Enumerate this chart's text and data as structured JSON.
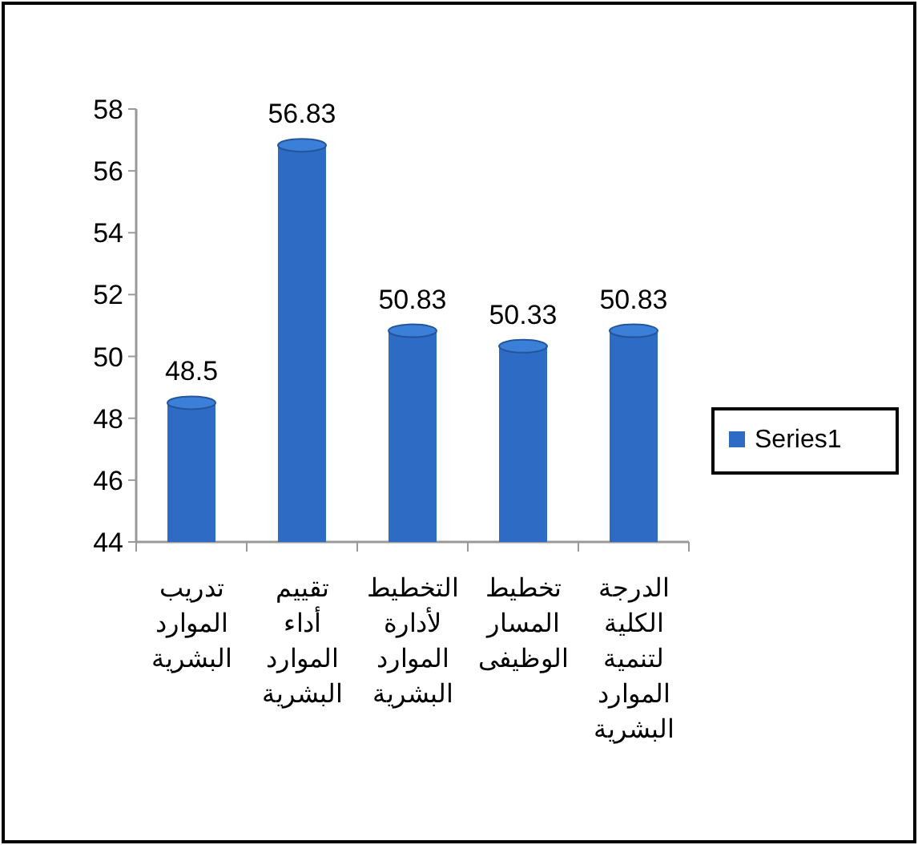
{
  "chart_data": {
    "type": "bar",
    "categories": [
      "تدريب الموارد البشرية",
      "تقييم أداء الموارد البشرية",
      "التخطيط لأدارة الموارد البشرية",
      "تخطيط المسار الوظيفى",
      "الدرجة الكلية لتنمية الموارد البشرية"
    ],
    "series": [
      {
        "name": "Series1",
        "color": "#2e6bc4",
        "values": [
          48.5,
          56.83,
          50.83,
          50.33,
          50.83
        ]
      }
    ],
    "ylim": [
      44,
      58
    ],
    "yticks": [
      44,
      46,
      48,
      50,
      52,
      54,
      56,
      58
    ],
    "data_labels": true,
    "legend": "right",
    "grid": false
  }
}
